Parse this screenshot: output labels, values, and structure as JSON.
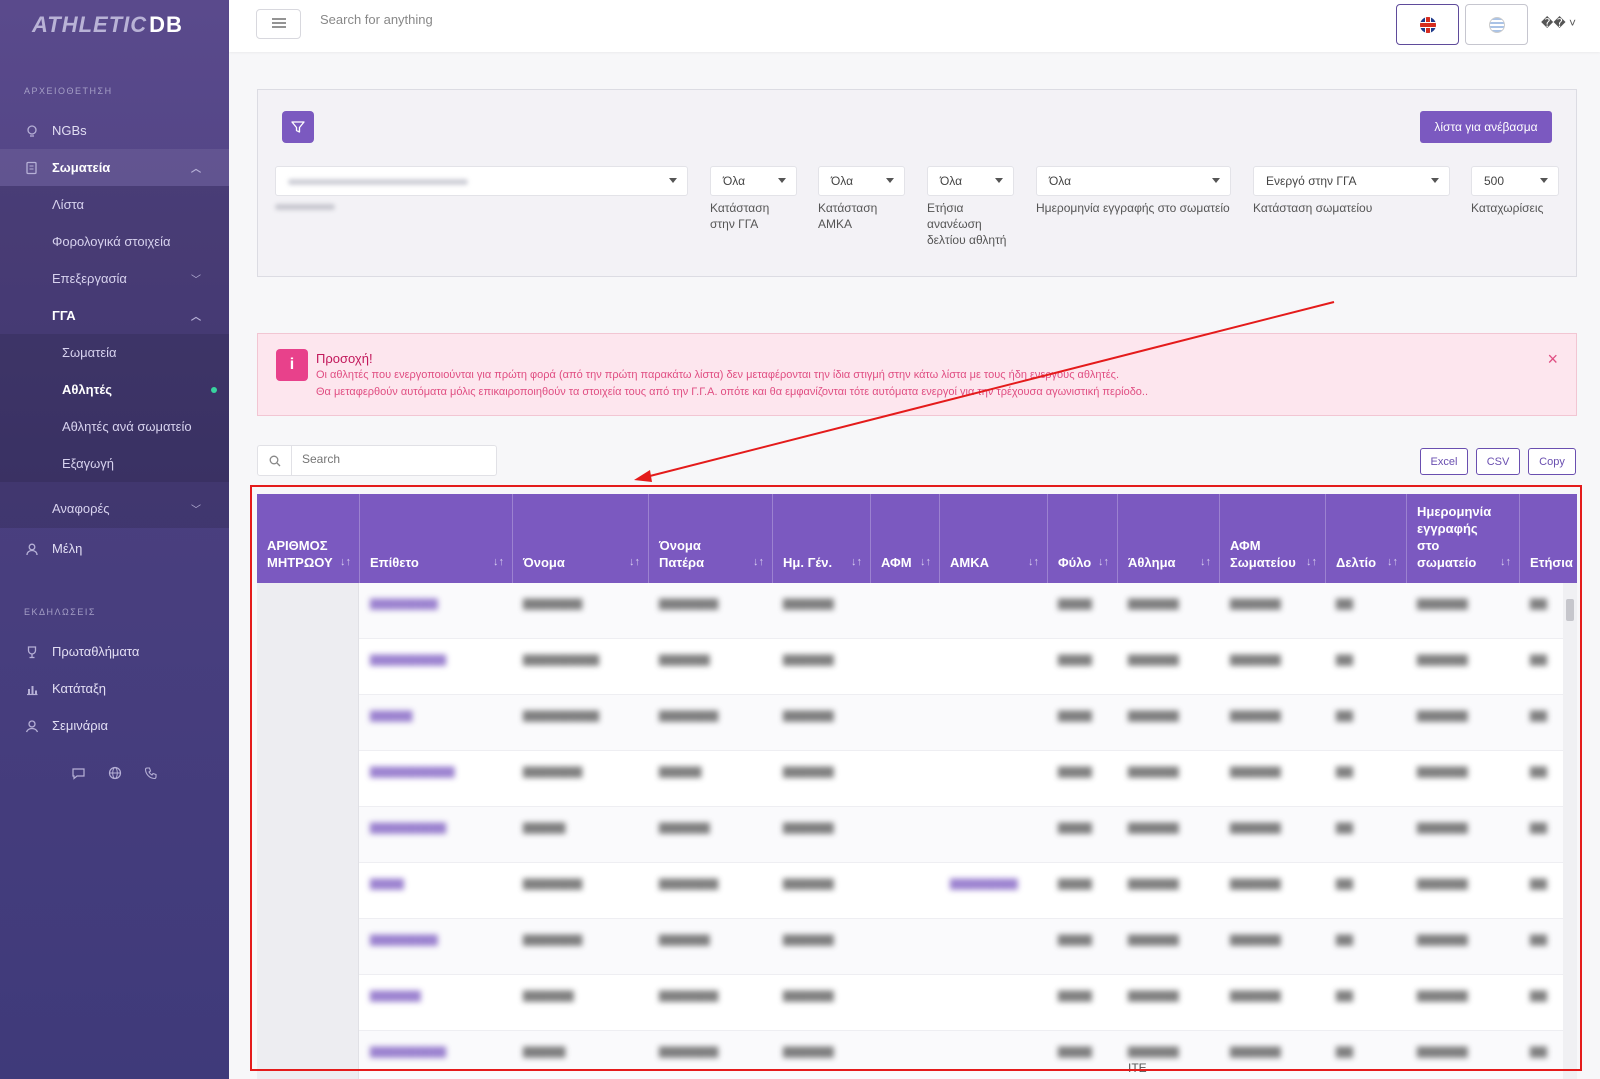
{
  "sidebar": {
    "logo_a": "ATHLETIC",
    "logo_b": "DB",
    "section_archive": "ΑΡΧΕΙΟΘΕΤΗΣΗ",
    "section_events": "ΕΚΔΗΛΩΣΕΙΣ",
    "items": {
      "ngbs": "NGBs",
      "clubs": "Σωματεία",
      "list": "Λίστα",
      "tax": "Φορολογικά στοιχεία",
      "processing": "Επεξεργασία",
      "gga": "ΓΓΑ",
      "gga_clubs": "Σωματεία",
      "gga_athletes": "Αθλητές",
      "gga_athletes_per_club": "Αθλητές ανά σωματείο",
      "gga_export": "Εξαγωγή",
      "reports": "Αναφορές",
      "members": "Μέλη",
      "championships": "Πρωταθλήματα",
      "ranking": "Κατάταξη",
      "seminars": "Σεμινάρια"
    }
  },
  "topbar": {
    "search_placeholder": "Search for anything",
    "user_glyph": "�� ˅"
  },
  "filters": {
    "upload_button": "λίστα για ανέβασμα",
    "club_label": "Σωματείο",
    "gga_status": {
      "value": "Όλα",
      "label": "Κατάσταση στην ΓΓΑ"
    },
    "amka_status": {
      "value": "Όλα",
      "label": "Κατάσταση ΑΜΚΑ"
    },
    "annual_renewal": {
      "value": "Όλα",
      "label": "Ετήσια ανανέωση δελτίου αθλητή"
    },
    "registration_date": {
      "value": "Όλα",
      "label": "Ημερομηνία εγγραφής στο σωματείο"
    },
    "club_status": {
      "value": "Ενεργό στην ΓΓΑ",
      "label": "Κατάσταση σωματείου"
    },
    "entries": {
      "value": "500",
      "label": "Καταχωρίσεις"
    }
  },
  "alert": {
    "title": "Προσοχή!",
    "line1": "Οι αθλητές που ενεργοποιούνται για πρώτη φορά (από την πρώτη παρακάτω λίστα) δεν μεταφέρονται την ίδια στιγμή στην κάτω λίστα με τους ήδη ενεργούς αθλητές.",
    "line2": "Θα μεταφερθούν αυτόματα μόλις επικαιροποιηθούν τα στοιχεία τους από την Γ.Γ.Α. οπότε και θα εμφανίζονται τότε αυτόματα ενεργοί για την τρέχουσα αγωνιστική περίοδο..",
    "close": "×"
  },
  "table": {
    "search_placeholder": "Search",
    "export_buttons": [
      "Excel",
      "CSV",
      "Copy"
    ],
    "headers": [
      "ΑΡΙΘΜΟΣ ΜΗΤΡΩΟΥ",
      "Επίθετο",
      "Όνομα",
      "Όνομα Πατέρα",
      "Ημ. Γέν.",
      "ΑΦΜ",
      "ΑΜΚΑ",
      "Φύλο",
      "Άθλημα",
      "ΑΦΜ Σωματείου",
      "Δελτίο",
      "Ημερομηνία εγγραφής στο σωματείο",
      "Ετήσια ανανέωση δελτίου αθλητή"
    ],
    "sort_glyph": "↓↑",
    "last_visible_fragment": "ΙΤΕ"
  },
  "colors": {
    "accent": "#7b59c0",
    "sidebar": "#4a3f7f",
    "alert_bg": "#fde6ee",
    "annotation": "#e41b1b",
    "active_dot": "#38d39f"
  }
}
